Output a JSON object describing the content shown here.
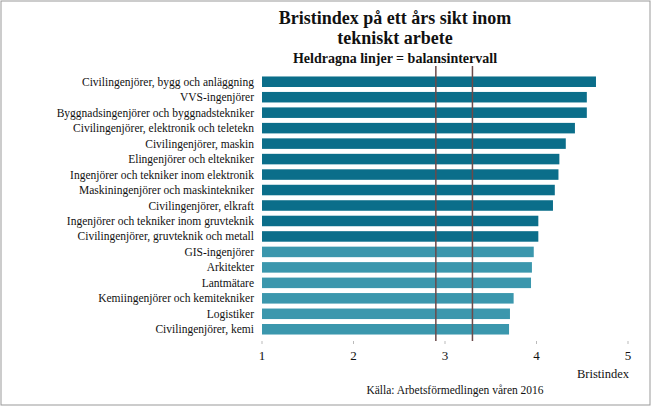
{
  "chart_data": {
    "type": "bar",
    "orientation": "horizontal",
    "title": "Bristindex på ett års sikt inom tekniskt arbete",
    "subtitle": "Heldragna linjer = balansintervall",
    "x_label": "Bristindex",
    "source": "Källa: Arbetsförmedlingen våren 2016",
    "categories": [
      "Civilingenjörer, bygg och anläggning",
      "VVS-ingenjörer",
      "Byggnadsingenjörer och byggnadstekniker",
      "Civilingenjörer, elektronik och teletekn",
      "Civilingenjörer, maskin",
      "Elingenjörer och eltekniker",
      "Ingenjörer och tekniker inom elektronik",
      "Maskiningenjörer och maskintekniker",
      "Civilingenjörer, elkraft",
      "Ingenjörer och tekniker inom gruvteknik",
      "Civilingenjörer, gruvteknik och metall",
      "GIS-ingenjörer",
      "Arkitekter",
      "Lantmätare",
      "Kemiingenjörer och kemitekniker",
      "Logistiker",
      "Civilingenjörer, kemi"
    ],
    "values": [
      4.65,
      4.55,
      4.55,
      4.42,
      4.32,
      4.25,
      4.24,
      4.2,
      4.18,
      4.02,
      4.02,
      3.97,
      3.95,
      3.94,
      3.75,
      3.71,
      3.7
    ],
    "colors": [
      "#0b6e8a",
      "#0b6e8a",
      "#0b6e8a",
      "#0b6e8a",
      "#0b6e8a",
      "#0b6e8a",
      "#0b6e8a",
      "#0b6e8a",
      "#0b6e8a",
      "#0b6e8a",
      "#0b6e8a",
      "#3b97ad",
      "#3b97ad",
      "#3b97ad",
      "#3b97ad",
      "#3b97ad",
      "#3b97ad"
    ],
    "balance_interval": [
      2.9,
      3.3
    ],
    "xlim": [
      1,
      5
    ],
    "xticks": [
      1,
      2,
      3,
      4,
      5
    ],
    "grid": false
  }
}
